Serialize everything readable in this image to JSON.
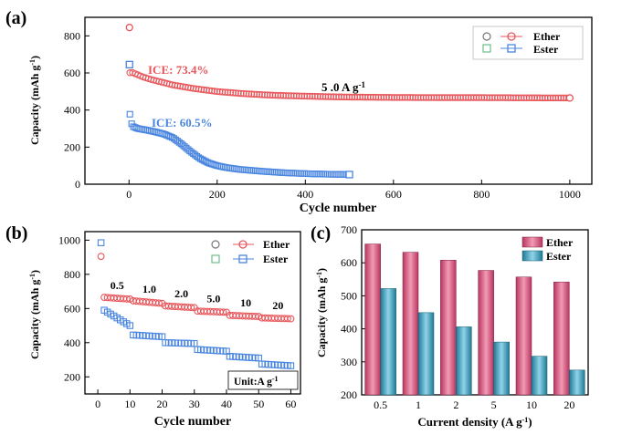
{
  "chart_data": [
    {
      "panel_label": "(a)",
      "type": "scatter",
      "xlabel": "Cycle number",
      "ylabel": "Capacity (mAh g",
      "ylabel_sup": "-1",
      "ylabel_close": ")",
      "xlim": [
        -100,
        1050
      ],
      "ylim": [
        0,
        900
      ],
      "xticks": [
        0,
        200,
        400,
        600,
        800,
        1000
      ],
      "yticks": [
        0,
        200,
        400,
        600,
        800
      ],
      "annotations": [
        {
          "text": "ICE: 73.4%",
          "color": "#e8555a"
        },
        {
          "text": "ICE: 60.5%",
          "color": "#4a86e0"
        },
        {
          "text": "5 .0 A g",
          "sup": "-1",
          "color": "#000000"
        }
      ],
      "legend": {
        "placement": "top-right",
        "entries": [
          "Ether",
          "Ester"
        ]
      },
      "series": [
        {
          "name": "Ether",
          "color": "#e8555a",
          "first_cycle": 845,
          "points": [
            [
              1,
              600
            ],
            [
              5,
              605
            ],
            [
              10,
              600
            ],
            [
              20,
              590
            ],
            [
              30,
              580
            ],
            [
              50,
              565
            ],
            [
              75,
              550
            ],
            [
              100,
              535
            ],
            [
              150,
              515
            ],
            [
              200,
              500
            ],
            [
              250,
              490
            ],
            [
              300,
              483
            ],
            [
              350,
              478
            ],
            [
              400,
              475
            ],
            [
              450,
              472
            ],
            [
              500,
              470
            ],
            [
              600,
              468
            ],
            [
              700,
              467
            ],
            [
              800,
              467
            ],
            [
              900,
              466
            ],
            [
              1000,
              465
            ]
          ]
        },
        {
          "name": "Ester",
          "color": "#4a86e0",
          "first_cycle": 645,
          "points": [
            [
              1,
              400
            ],
            [
              3,
              355
            ],
            [
              5,
              330
            ],
            [
              10,
              310
            ],
            [
              20,
              300
            ],
            [
              40,
              292
            ],
            [
              60,
              282
            ],
            [
              80,
              270
            ],
            [
              100,
              250
            ],
            [
              120,
              215
            ],
            [
              140,
              175
            ],
            [
              160,
              140
            ],
            [
              180,
              115
            ],
            [
              200,
              100
            ],
            [
              220,
              90
            ],
            [
              250,
              80
            ],
            [
              300,
              70
            ],
            [
              350,
              62
            ],
            [
              400,
              57
            ],
            [
              450,
              54
            ],
            [
              500,
              52
            ]
          ]
        }
      ]
    },
    {
      "panel_label": "(b)",
      "type": "scatter",
      "xlabel": "Cycle number",
      "ylabel": "Capacity (mAh g",
      "ylabel_sup": "-1",
      "ylabel_close": ")",
      "xlim": [
        -4,
        63
      ],
      "ylim": [
        100,
        1050
      ],
      "xticks": [
        0,
        10,
        20,
        30,
        40,
        50,
        60
      ],
      "yticks": [
        200,
        400,
        600,
        800,
        1000
      ],
      "rate_labels": [
        "0.5",
        "1.0",
        "2.0",
        "5.0",
        "10",
        "20"
      ],
      "unit_note": "Unit:A g",
      "unit_note_sup": "-1",
      "legend": {
        "placement": "top-right",
        "entries": [
          "Ether",
          "Ester"
        ]
      },
      "series": [
        {
          "name": "Ether",
          "color": "#e8555a",
          "first": [
            1,
            905
          ],
          "segments": [
            [
              2,
              10,
              665,
              655
            ],
            [
              11,
              20,
              645,
              630
            ],
            [
              21,
              30,
              615,
              605
            ],
            [
              31,
              40,
              585,
              578
            ],
            [
              41,
              50,
              560,
              553
            ],
            [
              51,
              60,
              545,
              540
            ]
          ]
        },
        {
          "name": "Ester",
          "color": "#4a86e0",
          "first": [
            1,
            985
          ],
          "segments": [
            [
              2,
              10,
              590,
              500
            ],
            [
              11,
              20,
              445,
              435
            ],
            [
              21,
              30,
              400,
              395
            ],
            [
              31,
              40,
              360,
              350
            ],
            [
              41,
              50,
              320,
              310
            ],
            [
              51,
              60,
              275,
              265
            ]
          ]
        }
      ]
    },
    {
      "panel_label": "(c)",
      "type": "bar",
      "xlabel": "Current density (A g",
      "xlabel_sup": "-1",
      "xlabel_close": ")",
      "ylabel": "Capacity (mAh g",
      "ylabel_sup": "-1",
      "ylabel_close": ")",
      "categories": [
        "0.5",
        "1",
        "2",
        "5",
        "10",
        "20"
      ],
      "ylim": [
        200,
        700
      ],
      "yticks": [
        200,
        300,
        400,
        500,
        600,
        700
      ],
      "legend": {
        "placement": "top-right"
      },
      "series": [
        {
          "name": "Ether",
          "color": "#d9557a",
          "values": [
            657,
            632,
            608,
            577,
            557,
            542
          ]
        },
        {
          "name": "Ester",
          "color": "#3aa0bd",
          "values": [
            522,
            449,
            406,
            360,
            317,
            275
          ]
        }
      ]
    }
  ]
}
